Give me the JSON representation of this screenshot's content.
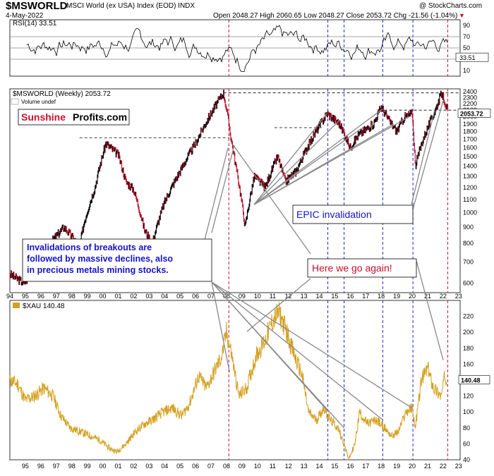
{
  "header": {
    "symbol": "$MSWORLD",
    "description": "MSCI World (ex USA) Index (EOD)  INDX",
    "attribution": "@ StockCharts.com",
    "date": "4-May-2022",
    "quote": "Open 2048.27  High 2060.65  Low 2048.27  Close 2053.72  Chg -21.56 (-1.04%)"
  },
  "panels": {
    "rsi_label": "RSI(14) 33.51",
    "rsi_value_tag": "33.51",
    "main_label": "$MSWORLD (Weekly) 2053.72",
    "volume_label": "Volume undef",
    "main_value_tag": "2053.72",
    "xau_label": "$XAU 140.48",
    "xau_value_tag": "140.48"
  },
  "brand": {
    "part1": "Sunshine",
    "part2": "Profits.com",
    "color1": "#c8102e",
    "color2": "#000000"
  },
  "annotations": {
    "invalidations": [
      "Invalidations of breakouts are",
      "followed by massive declines, also",
      "in precious metals mining stocks."
    ],
    "epic": "EPIC invalidation",
    "again": "Here we go again!"
  },
  "colors": {
    "blue_text": "#1414c8",
    "red_text": "#c0102a",
    "xau_line": "#d4a020",
    "price_up": "#000000",
    "price_down": "#b4102a"
  },
  "chart_data": [
    {
      "type": "line",
      "name": "RSI(14)",
      "ylim": [
        0,
        100
      ],
      "ticks": [
        10,
        30,
        50,
        70,
        90
      ],
      "reference_lines": [
        30,
        50,
        70
      ],
      "last": 33.51
    },
    {
      "type": "candlestick",
      "name": "$MSWORLD (Weekly)",
      "y_scale": "log",
      "ylim": [
        560,
        2450
      ],
      "ticks": [
        600,
        700,
        800,
        900,
        1000,
        1100,
        1200,
        1300,
        1400,
        1500,
        1600,
        1700,
        1800,
        1900,
        2000,
        2100,
        2200,
        2300,
        2400
      ],
      "x_ticks": [
        "94",
        "95",
        "96",
        "97",
        "98",
        "99",
        "00",
        "01",
        "02",
        "03",
        "04",
        "05",
        "06",
        "07",
        "08",
        "09",
        "10",
        "11",
        "12",
        "13",
        "14",
        "15",
        "16",
        "17",
        "18",
        "19",
        "20",
        "21",
        "22",
        "23"
      ],
      "x": [
        1994.0,
        1994.9,
        1995.8,
        1996.6,
        1997.5,
        1998.5,
        1998.8,
        1999.5,
        2000.2,
        2001.0,
        2001.5,
        2002.0,
        2002.7,
        2003.2,
        2004.0,
        2005.0,
        2006.0,
        2007.0,
        2007.8,
        2008.3,
        2008.6,
        2009.2,
        2009.8,
        2010.5,
        2011.3,
        2011.8,
        2012.5,
        2013.5,
        2014.5,
        2015.3,
        2016.0,
        2016.5,
        2017.5,
        2018.0,
        2018.5,
        2019.0,
        2019.5,
        2020.0,
        2020.2,
        2020.7,
        2021.5,
        2021.9,
        2022.34
      ],
      "close": [
        640,
        600,
        680,
        800,
        900,
        780,
        930,
        1200,
        1650,
        1520,
        1250,
        1180,
        880,
        800,
        1080,
        1350,
        1650,
        2050,
        2380,
        1700,
        1400,
        900,
        1300,
        1200,
        1500,
        1250,
        1350,
        1700,
        2050,
        1900,
        1600,
        1750,
        1900,
        2150,
        1950,
        1800,
        2000,
        2050,
        1400,
        1700,
        2100,
        2380,
        2053.72
      ],
      "levels": [
        1720,
        1850,
        2100,
        2380
      ]
    },
    {
      "type": "line",
      "name": "$XAU",
      "ylim": [
        40,
        240
      ],
      "ticks": [
        40,
        60,
        80,
        100,
        120,
        140,
        160,
        180,
        200,
        220
      ],
      "x_ticks": [
        "95",
        "96",
        "97",
        "98",
        "99",
        "00",
        "01",
        "02",
        "03",
        "04",
        "05",
        "06",
        "07",
        "08",
        "09",
        "10",
        "11",
        "12",
        "13",
        "14",
        "15",
        "16",
        "17",
        "18",
        "19",
        "20",
        "21",
        "22",
        "23"
      ],
      "x": [
        1994.0,
        1994.5,
        1995.0,
        1995.6,
        1996.2,
        1996.8,
        1997.3,
        1997.9,
        1998.6,
        1999.2,
        1999.8,
        2000.4,
        2000.9,
        2001.5,
        2002.1,
        2002.7,
        2003.2,
        2003.9,
        2004.5,
        2005.1,
        2005.6,
        2006.2,
        2006.7,
        2007.2,
        2007.7,
        2008.0,
        2008.3,
        2008.8,
        2009.3,
        2009.9,
        2010.5,
        2011.0,
        2011.4,
        2011.9,
        2012.4,
        2012.9,
        2013.3,
        2013.8,
        2014.3,
        2014.7,
        2015.2,
        2015.6,
        2015.9,
        2016.3,
        2016.6,
        2017.1,
        2017.7,
        2018.2,
        2018.7,
        2019.1,
        2019.6,
        2020.0,
        2020.2,
        2020.6,
        2021.0,
        2021.4,
        2021.9,
        2022.1,
        2022.34
      ],
      "values": [
        140,
        135,
        115,
        120,
        130,
        120,
        95,
        80,
        75,
        70,
        65,
        55,
        50,
        60,
        75,
        85,
        90,
        100,
        105,
        95,
        110,
        145,
        130,
        150,
        170,
        200,
        175,
        120,
        130,
        170,
        190,
        215,
        225,
        200,
        170,
        145,
        100,
        90,
        105,
        90,
        80,
        60,
        40,
        60,
        100,
        85,
        90,
        80,
        70,
        75,
        100,
        105,
        80,
        140,
        155,
        130,
        120,
        145,
        140.48
      ]
    }
  ]
}
